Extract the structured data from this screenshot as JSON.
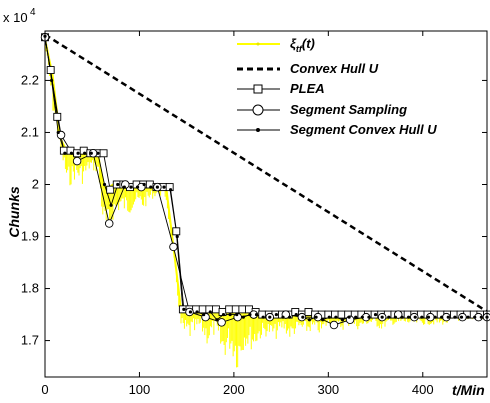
{
  "chart_data": {
    "type": "line",
    "ylabel": "Chunks",
    "xlabel": "t/Min",
    "y_exponent_label": "x 10",
    "y_exponent_power": "4",
    "xlim": [
      0,
      468
    ],
    "ylim": [
      1.63,
      2.295
    ],
    "x_ticks": [
      0,
      100,
      200,
      300,
      400
    ],
    "y_ticks": [
      1.7,
      1.8,
      1.9,
      2.0,
      2.1,
      2.2
    ],
    "y_tick_labels": [
      "1.7",
      "1.8",
      "1.9",
      "2",
      "2.1",
      "2.2"
    ],
    "legend_placement": "top-right",
    "grid": false,
    "colors": {
      "noisy": "#ffff00",
      "hull": "#000000",
      "series": "#000000"
    },
    "series": [
      {
        "name": "ξtf(t)",
        "style": "noisy-yellow-dots",
        "x": [
          0,
          8,
          16,
          24,
          32,
          40,
          48,
          56,
          62,
          68,
          72,
          80,
          88,
          96,
          104,
          112,
          120,
          128,
          136,
          144,
          148,
          156,
          164,
          172,
          180,
          188,
          196,
          204,
          212,
          220,
          228,
          236,
          244,
          252,
          260,
          268,
          276,
          284,
          292,
          300,
          308,
          316,
          324,
          332,
          340,
          348,
          356,
          364,
          372,
          380,
          388,
          396,
          404,
          412,
          420,
          428,
          436,
          444,
          452,
          460,
          468
        ],
        "upper": [
          2.28,
          2.21,
          2.09,
          2.06,
          2.06,
          2.065,
          2.06,
          2.06,
          1.995,
          1.995,
          2.0,
          2.0,
          2.0,
          2.0,
          2.0,
          2.0,
          2.0,
          2.0,
          1.88,
          1.76,
          1.765,
          1.765,
          1.76,
          1.76,
          1.76,
          1.755,
          1.76,
          1.76,
          1.755,
          1.755,
          1.755,
          1.75,
          1.75,
          1.755,
          1.75,
          1.75,
          1.755,
          1.75,
          1.75,
          1.75,
          1.75,
          1.755,
          1.75,
          1.75,
          1.75,
          1.755,
          1.75,
          1.75,
          1.75,
          1.755,
          1.75,
          1.75,
          1.75,
          1.75,
          1.75,
          1.755,
          1.75,
          1.75,
          1.75,
          1.75,
          1.75
        ],
        "lower": [
          2.27,
          2.14,
          2.07,
          1.99,
          2.01,
          2.0,
          2.03,
          2.02,
          1.91,
          1.88,
          1.93,
          1.95,
          1.94,
          1.96,
          1.95,
          1.97,
          1.98,
          1.97,
          1.86,
          1.72,
          1.7,
          1.7,
          1.72,
          1.69,
          1.71,
          1.66,
          1.68,
          1.64,
          1.69,
          1.68,
          1.7,
          1.71,
          1.7,
          1.72,
          1.7,
          1.72,
          1.71,
          1.72,
          1.71,
          1.73,
          1.72,
          1.72,
          1.73,
          1.72,
          1.73,
          1.73,
          1.72,
          1.73,
          1.73,
          1.73,
          1.73,
          1.73,
          1.73,
          1.73,
          1.73,
          1.73,
          1.74,
          1.73,
          1.74,
          1.74,
          1.74
        ]
      },
      {
        "name": "Convex Hull U",
        "style": "dashed-thick",
        "x": [
          0,
          468
        ],
        "values": [
          2.288,
          1.756
        ]
      },
      {
        "name": "PLEA",
        "style": "square-markers",
        "x": [
          0,
          6,
          13,
          20,
          27,
          34,
          41,
          48,
          55,
          62,
          69,
          76,
          83,
          90,
          97,
          104,
          111,
          118,
          125,
          132,
          139,
          146,
          153,
          160,
          167,
          174,
          181,
          188,
          195,
          202,
          209,
          216,
          223,
          230,
          237,
          244,
          251,
          258,
          265,
          272,
          279,
          286,
          293,
          300,
          307,
          314,
          321,
          328,
          335,
          342,
          349,
          356,
          363,
          370,
          377,
          384,
          391,
          398,
          405,
          412,
          419,
          426,
          433,
          440,
          447,
          454,
          461,
          468
        ],
        "values": [
          2.283,
          2.22,
          2.13,
          2.065,
          2.065,
          2.06,
          2.065,
          2.06,
          2.06,
          2.06,
          1.99,
          2.0,
          2.0,
          1.995,
          2.0,
          2.0,
          2.0,
          1.995,
          1.995,
          1.995,
          1.91,
          1.76,
          1.76,
          1.76,
          1.76,
          1.76,
          1.76,
          1.755,
          1.76,
          1.76,
          1.76,
          1.76,
          1.755,
          1.75,
          1.75,
          1.75,
          1.75,
          1.75,
          1.755,
          1.75,
          1.755,
          1.75,
          1.75,
          1.75,
          1.75,
          1.75,
          1.75,
          1.75,
          1.75,
          1.75,
          1.75,
          1.75,
          1.75,
          1.75,
          1.75,
          1.75,
          1.75,
          1.75,
          1.75,
          1.75,
          1.75,
          1.75,
          1.75,
          1.75,
          1.75,
          1.75,
          1.75,
          1.75
        ]
      },
      {
        "name": "Segment Sampling",
        "style": "circle-markers",
        "x": [
          0,
          17,
          34,
          51,
          68,
          85,
          102,
          119,
          136,
          153,
          170,
          187,
          204,
          221,
          238,
          255,
          272,
          289,
          306,
          323,
          340,
          357,
          374,
          391,
          408,
          425,
          442,
          459,
          468
        ],
        "values": [
          2.283,
          2.095,
          2.045,
          2.06,
          1.925,
          2.0,
          1.995,
          1.995,
          1.88,
          1.755,
          1.745,
          1.735,
          1.745,
          1.75,
          1.745,
          1.75,
          1.745,
          1.745,
          1.73,
          1.74,
          1.745,
          1.745,
          1.75,
          1.745,
          1.745,
          1.745,
          1.745,
          1.745,
          1.745
        ]
      },
      {
        "name": "Segment Convex Hull U",
        "style": "dot-markers",
        "x": [
          0,
          7,
          14,
          21,
          28,
          35,
          42,
          49,
          56,
          63,
          70,
          77,
          84,
          91,
          98,
          105,
          112,
          119,
          126,
          133,
          140,
          147,
          154,
          161,
          168,
          175,
          182,
          189,
          196,
          203,
          210,
          217,
          224,
          231,
          238,
          245,
          252,
          259,
          266,
          273,
          280,
          287,
          294,
          301,
          308,
          315,
          322,
          329,
          336,
          343,
          350,
          357,
          364,
          371,
          378,
          385,
          392,
          399,
          406,
          413,
          420,
          427,
          434,
          441,
          448,
          455,
          462,
          468
        ],
        "values": [
          2.285,
          2.2,
          2.1,
          2.06,
          2.06,
          2.06,
          2.06,
          2.06,
          2.06,
          2.0,
          1.96,
          2.0,
          1.995,
          1.995,
          1.995,
          2.0,
          1.995,
          1.995,
          1.995,
          1.99,
          1.9,
          1.76,
          1.755,
          1.755,
          1.75,
          1.755,
          1.74,
          1.75,
          1.75,
          1.75,
          1.745,
          1.75,
          1.75,
          1.745,
          1.745,
          1.75,
          1.745,
          1.745,
          1.75,
          1.745,
          1.74,
          1.745,
          1.74,
          1.745,
          1.745,
          1.74,
          1.745,
          1.745,
          1.745,
          1.745,
          1.75,
          1.745,
          1.745,
          1.745,
          1.745,
          1.745,
          1.745,
          1.745,
          1.745,
          1.745,
          1.745,
          1.745,
          1.745,
          1.745,
          1.745,
          1.745,
          1.745,
          1.745
        ]
      }
    ]
  }
}
